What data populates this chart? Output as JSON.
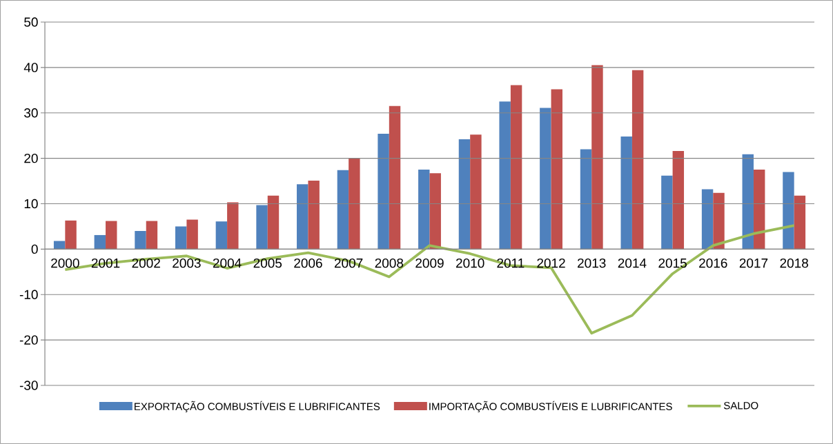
{
  "chart_data": {
    "type": "bar",
    "categories": [
      "2000",
      "2001",
      "2002",
      "2003",
      "2004",
      "2005",
      "2006",
      "2007",
      "2008",
      "2009",
      "2010",
      "2011",
      "2012",
      "2013",
      "2014",
      "2015",
      "2016",
      "2017",
      "2018"
    ],
    "series": [
      {
        "name": "EXPORTAÇÃO COMBUSTÍVEIS E LUBRIFICANTES",
        "color": "#4f81bd",
        "values": [
          1.8,
          3.1,
          4.0,
          5.0,
          6.1,
          9.7,
          14.3,
          17.4,
          25.4,
          17.5,
          24.2,
          32.5,
          31.1,
          22.0,
          24.8,
          16.2,
          13.2,
          20.9,
          17.0
        ]
      },
      {
        "name": "IMPORTAÇÃO COMBUSTÍVEIS E LUBRIFICANTES",
        "color": "#c0504d",
        "values": [
          6.3,
          6.2,
          6.2,
          6.5,
          10.3,
          11.8,
          15.1,
          20.0,
          31.5,
          16.7,
          25.2,
          36.1,
          35.2,
          40.5,
          39.4,
          21.6,
          12.4,
          17.5,
          11.8
        ]
      },
      {
        "name": "SALDO",
        "type": "line",
        "color": "#9bbb59",
        "values": [
          -4.5,
          -3.1,
          -2.2,
          -1.5,
          -4.2,
          -2.1,
          -0.8,
          -2.6,
          -6.1,
          0.8,
          -1.0,
          -3.6,
          -4.1,
          -18.5,
          -14.6,
          -5.4,
          0.8,
          3.4,
          5.2
        ]
      }
    ],
    "ylim": [
      -30,
      50
    ],
    "yticks": [
      -30,
      -20,
      -10,
      0,
      10,
      20,
      30,
      40,
      50
    ],
    "grid": "y",
    "legend": "bottom"
  }
}
